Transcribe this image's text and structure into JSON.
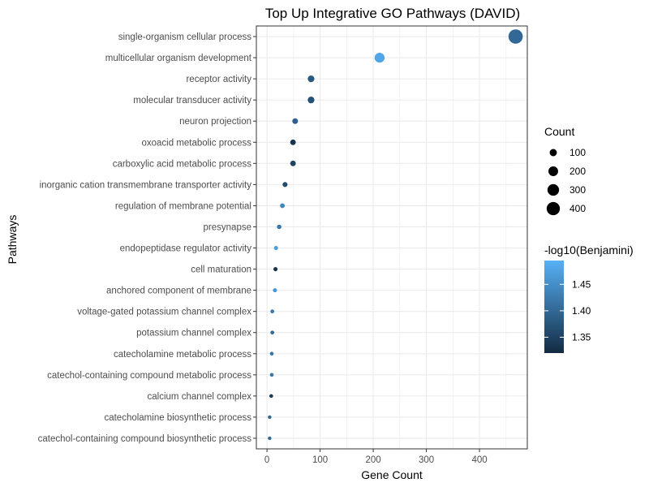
{
  "chart_data": {
    "type": "scatter",
    "title": "Top Up Integrative GO Pathways (DAVID)",
    "xlabel": "Gene Count",
    "ylabel": "Pathways",
    "xlim": [
      -20,
      490
    ],
    "xticks": [
      0,
      100,
      200,
      300,
      400
    ],
    "grid": true,
    "categories": [
      "single-organism cellular process",
      "multicellular organism development",
      "receptor activity",
      "molecular transducer activity",
      "neuron projection",
      "oxoacid metabolic process",
      "carboxylic acid metabolic process",
      "inorganic cation transmembrane transporter activity",
      "regulation of membrane potential",
      "presynapse",
      "endopeptidase regulator activity",
      "cell maturation",
      "anchored component of membrane",
      "voltage-gated potassium channel complex",
      "potassium channel complex",
      "catecholamine metabolic process",
      "catechol-containing compound metabolic process",
      "calcium channel complex",
      "catecholamine biosynthetic process",
      "catechol-containing compound biosynthetic process"
    ],
    "points": [
      {
        "count": 468,
        "neglog10_benjamini": 1.4
      },
      {
        "count": 212,
        "neglog10_benjamini": 1.48
      },
      {
        "count": 83,
        "neglog10_benjamini": 1.38
      },
      {
        "count": 83,
        "neglog10_benjamini": 1.37
      },
      {
        "count": 53,
        "neglog10_benjamini": 1.39
      },
      {
        "count": 49,
        "neglog10_benjamini": 1.33
      },
      {
        "count": 49,
        "neglog10_benjamini": 1.35
      },
      {
        "count": 34,
        "neglog10_benjamini": 1.36
      },
      {
        "count": 29,
        "neglog10_benjamini": 1.44
      },
      {
        "count": 23,
        "neglog10_benjamini": 1.42
      },
      {
        "count": 17,
        "neglog10_benjamini": 1.47
      },
      {
        "count": 16,
        "neglog10_benjamini": 1.33
      },
      {
        "count": 15,
        "neglog10_benjamini": 1.46
      },
      {
        "count": 10,
        "neglog10_benjamini": 1.42
      },
      {
        "count": 10,
        "neglog10_benjamini": 1.4
      },
      {
        "count": 9,
        "neglog10_benjamini": 1.42
      },
      {
        "count": 9,
        "neglog10_benjamini": 1.42
      },
      {
        "count": 8,
        "neglog10_benjamini": 1.34
      },
      {
        "count": 5,
        "neglog10_benjamini": 1.4
      },
      {
        "count": 5,
        "neglog10_benjamini": 1.4
      }
    ],
    "legend_size": {
      "title": "Count",
      "entries": [
        100,
        200,
        300,
        400
      ]
    },
    "legend_color": {
      "title": "-log10(Benjamini)",
      "range": [
        1.32,
        1.495
      ],
      "ticks": [
        1.35,
        1.4,
        1.45
      ],
      "tick_labels": [
        "1.35",
        "1.40",
        "1.45"
      ],
      "color_low": "#132B43",
      "color_high": "#56B1F7"
    },
    "legend_placement": "right",
    "panel_border_color": "#333333",
    "grid_color": "#ebebeb",
    "axis_text_color": "#4d4d4d"
  }
}
